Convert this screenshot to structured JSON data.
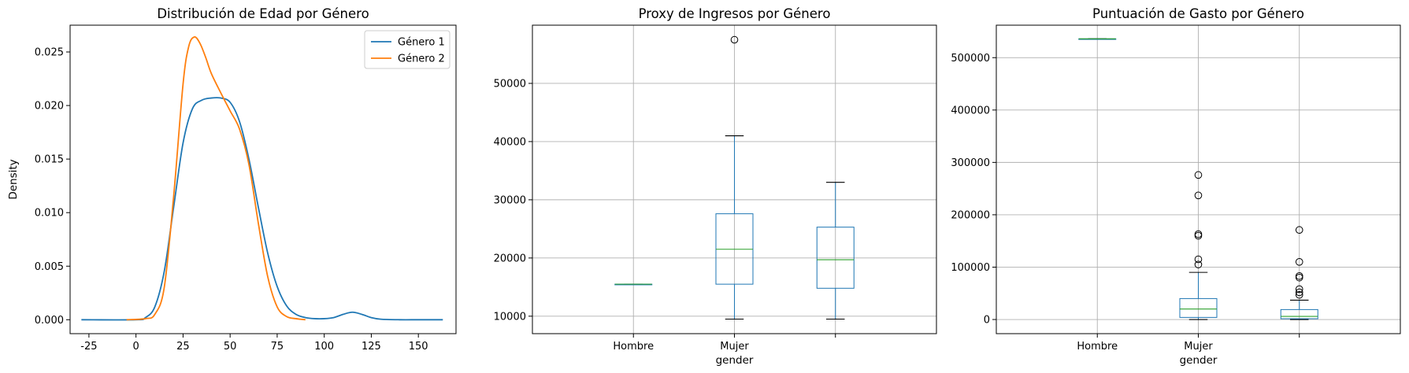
{
  "chart_data": [
    {
      "type": "line",
      "title": "Distribución de Edad por Género",
      "xlabel": "",
      "ylabel": "Density",
      "xlim": [
        -35,
        170
      ],
      "ylim": [
        -0.0013,
        0.0275
      ],
      "xticks": [
        -25,
        0,
        25,
        50,
        75,
        100,
        125,
        150
      ],
      "yticks": [
        0.0,
        0.005,
        0.01,
        0.015,
        0.02,
        0.025
      ],
      "ytick_labels": [
        "0.000",
        "0.005",
        "0.010",
        "0.015",
        "0.020",
        "0.025"
      ],
      "legend_position": "top-right",
      "grid": false,
      "series": [
        {
          "name": "Género 1",
          "color": "#1f77b4",
          "x": [
            -29,
            0,
            5,
            10,
            15,
            20,
            25,
            30,
            35,
            40,
            45,
            50,
            55,
            60,
            65,
            70,
            75,
            80,
            85,
            90,
            95,
            100,
            105,
            110,
            115,
            120,
            125,
            130,
            140,
            150,
            163
          ],
          "y": [
            0,
            0,
            0.0002,
            0.0012,
            0.0045,
            0.0105,
            0.0165,
            0.0197,
            0.0205,
            0.0207,
            0.0207,
            0.0203,
            0.0185,
            0.015,
            0.0105,
            0.0062,
            0.0031,
            0.0013,
            0.0005,
            0.0002,
            0.0001,
            0.0001,
            0.0002,
            0.0005,
            0.0007,
            0.0005,
            0.0002,
            5e-05,
            0,
            0,
            0
          ]
        },
        {
          "name": "Género 2",
          "color": "#ff7f0e",
          "x": [
            -5,
            5,
            10,
            15,
            20,
            25,
            28,
            31,
            34,
            37,
            40,
            45,
            50,
            55,
            60,
            65,
            70,
            75,
            80,
            85,
            90
          ],
          "y": [
            0,
            0.0001,
            0.0005,
            0.003,
            0.0115,
            0.022,
            0.0255,
            0.0264,
            0.0258,
            0.0245,
            0.023,
            0.0212,
            0.0195,
            0.0178,
            0.0145,
            0.009,
            0.004,
            0.0012,
            0.0003,
            0.0001,
            0
          ]
        }
      ]
    },
    {
      "type": "box",
      "title": "Proxy de Ingresos por Género",
      "xlabel": "gender",
      "ylabel": "",
      "ylim": [
        7000,
        60000
      ],
      "yticks": [
        10000,
        20000,
        30000,
        40000,
        50000
      ],
      "ytick_labels": [
        "10000",
        "20000",
        "30000",
        "40000",
        "50000"
      ],
      "categories": [
        "Hombre",
        "Mujer",
        ""
      ],
      "grid": true,
      "box_color": "#1f77b4",
      "median_color": "#2ca02c",
      "boxes": [
        {
          "whislo": 15500,
          "q1": 15500,
          "med": 15500,
          "q3": 15500,
          "whishi": 15500,
          "fliers": []
        },
        {
          "whislo": 9500,
          "q1": 15500,
          "med": 21500,
          "q3": 27600,
          "whishi": 41000,
          "fliers": [
            57500
          ]
        },
        {
          "whislo": 9500,
          "q1": 14800,
          "med": 19700,
          "q3": 25300,
          "whishi": 33000,
          "fliers": []
        }
      ]
    },
    {
      "type": "box",
      "title": "Puntuación de Gasto por Género",
      "xlabel": "gender",
      "ylabel": "",
      "ylim": [
        -27000,
        562000
      ],
      "yticks": [
        0,
        100000,
        200000,
        300000,
        400000,
        500000
      ],
      "ytick_labels": [
        "0",
        "100000",
        "200000",
        "300000",
        "400000",
        "500000"
      ],
      "categories": [
        "Hombre",
        "Mujer",
        ""
      ],
      "grid": true,
      "box_color": "#1f77b4",
      "median_color": "#2ca02c",
      "boxes": [
        {
          "whislo": 536000,
          "q1": 536000,
          "med": 536000,
          "q3": 536000,
          "whishi": 536000,
          "fliers": []
        },
        {
          "whislo": 0,
          "q1": 4000,
          "med": 20000,
          "q3": 40000,
          "whishi": 90000,
          "fliers": [
            105000,
            115000,
            160000,
            163000,
            237000,
            276000
          ]
        },
        {
          "whislo": 0,
          "q1": 1500,
          "med": 6000,
          "q3": 19000,
          "whishi": 37000,
          "fliers": [
            47000,
            52000,
            58000,
            80000,
            83000,
            110000,
            171000
          ]
        }
      ]
    }
  ]
}
